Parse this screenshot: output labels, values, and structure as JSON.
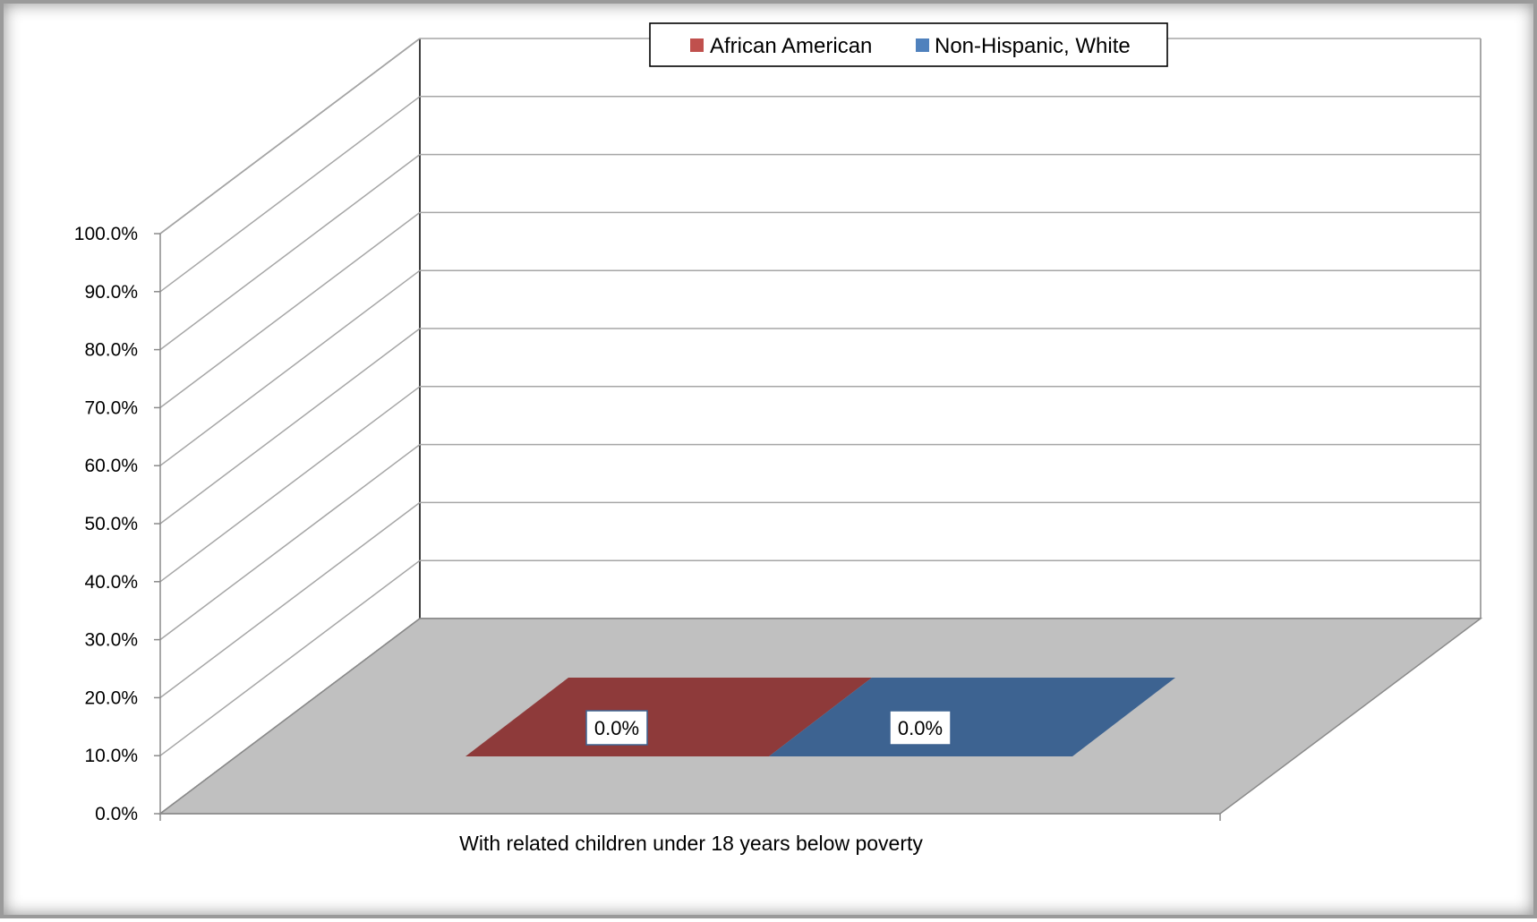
{
  "chart_data": {
    "type": "bar",
    "categories": [
      "With related children under 18 years below poverty"
    ],
    "series": [
      {
        "name": "African American",
        "values": [
          0.0
        ],
        "color": "#8e3a3a",
        "legend_color": "#c0504d",
        "label": "0.0%"
      },
      {
        "name": "Non-Hispanic, White",
        "values": [
          0.0
        ],
        "color": "#3d6391",
        "legend_color": "#4f81bd",
        "label": "0.0%"
      }
    ],
    "ylim": [
      0,
      100
    ],
    "yticks": [
      0,
      10,
      20,
      30,
      40,
      50,
      60,
      70,
      80,
      90,
      100
    ],
    "ytick_labels": [
      "0.0%",
      "10.0%",
      "20.0%",
      "30.0%",
      "40.0%",
      "50.0%",
      "60.0%",
      "70.0%",
      "80.0%",
      "90.0%",
      "100.0%"
    ],
    "legend_position": "top",
    "grid": true,
    "style": "3d",
    "floor_color": "#c0c0c0"
  }
}
